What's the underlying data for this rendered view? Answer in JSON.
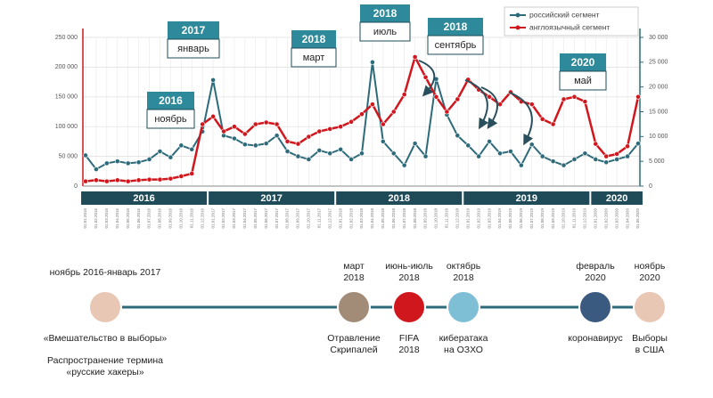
{
  "chart_data": {
    "type": "line",
    "categories": [
      "01.01.2016",
      "01.02.2016",
      "01.03.2016",
      "01.04.2016",
      "01.05.2016",
      "01.06.2016",
      "01.07.2016",
      "01.08.2016",
      "01.09.2016",
      "01.10.2016",
      "01.11.2016",
      "01.12.2016",
      "01.01.2017",
      "01.02.2017",
      "01.03.2017",
      "01.04.2017",
      "01.05.2017",
      "01.06.2017",
      "01.07.2017",
      "01.08.2017",
      "01.09.2017",
      "01.10.2017",
      "01.11.2017",
      "01.12.2017",
      "01.01.2018",
      "01.02.2018",
      "01.03.2018",
      "01.04.2018",
      "01.05.2018",
      "01.06.2018",
      "01.07.2018",
      "01.08.2018",
      "01.09.2018",
      "01.10.2018",
      "01.11.2018",
      "01.12.2018",
      "01.01.2019",
      "01.02.2019",
      "01.03.2019",
      "01.04.2019",
      "01.05.2019",
      "01.06.2019",
      "01.07.2019",
      "01.08.2019",
      "01.09.2019",
      "01.10.2019",
      "01.11.2019",
      "01.12.2019",
      "01.01.2020",
      "01.02.2020",
      "01.03.2020",
      "01.04.2020",
      "01.05.2020"
    ],
    "year_bands": [
      "2016",
      "2017",
      "2018",
      "2019",
      "2020"
    ],
    "series": [
      {
        "name": "российский сегмент",
        "color": "#2e6b7a",
        "axis": "y2",
        "values": [
          6200,
          3400,
          4600,
          5000,
          4600,
          4800,
          5400,
          7000,
          5800,
          8200,
          7400,
          11000,
          21400,
          10200,
          9600,
          8400,
          8200,
          8600,
          10200,
          7000,
          6000,
          5400,
          7200,
          6600,
          7400,
          5400,
          6600,
          25000,
          9000,
          6600,
          4200,
          8600,
          6000,
          21600,
          14400,
          10200,
          8200,
          6000,
          9000,
          6600,
          7000,
          4200,
          8400,
          6000,
          5000,
          4200,
          5400,
          6600,
          5400,
          4800,
          5400,
          6000,
          8600
        ]
      },
      {
        "name": "англоязычный сегмент",
        "color": "#d0171d",
        "values": [
          8000,
          10000,
          8000,
          10000,
          8000,
          10000,
          11000,
          11000,
          12500,
          16500,
          21000,
          104000,
          117000,
          92000,
          100000,
          87500,
          104000,
          107000,
          104000,
          75000,
          71000,
          83000,
          92000,
          96000,
          100000,
          108000,
          121000,
          137500,
          104000,
          125000,
          154000,
          217000,
          183000,
          150000,
          125000,
          146000,
          179000,
          162000,
          150000,
          137500,
          158000,
          142000,
          137500,
          112500,
          104000,
          146000,
          150000,
          142000,
          71000,
          50000,
          54000,
          67000,
          150000
        ]
      }
    ],
    "ylim": [
      0,
      250000
    ],
    "yticks": [
      0,
      {
        "value": 50000,
        "label": "50 000"
      },
      {
        "value": 100000,
        "label": "100 000"
      },
      {
        "value": 150000,
        "label": "150 000"
      },
      {
        "value": 200000,
        "label": "200 000"
      },
      {
        "value": 250000,
        "label": "250 000"
      }
    ],
    "y2lim": [
      0,
      30000
    ],
    "y2ticks": [
      0,
      {
        "value": 5000,
        "label": "5 000"
      },
      {
        "value": 10000,
        "label": "10 000"
      },
      {
        "value": 15000,
        "label": "15 000"
      },
      {
        "value": 20000,
        "label": "20 000"
      },
      {
        "value": 25000,
        "label": "25 000"
      },
      {
        "value": 30000,
        "label": "30 000"
      }
    ],
    "grid": true,
    "legend": "upper right",
    "annotations": [
      {
        "year": "2016",
        "month": "ноябрь"
      },
      {
        "year": "2017",
        "month": "январь"
      },
      {
        "year": "2018",
        "month": "март"
      },
      {
        "year": "2018",
        "month": "июль"
      },
      {
        "year": "2018",
        "month": "сентябрь"
      },
      {
        "year": "2020",
        "month": "май"
      }
    ]
  },
  "timeline": [
    {
      "date": "ноябрь 2016-январь 2017",
      "caption": [
        "«Вмешательство в выборы»"
      ],
      "note": [
        "Распространение термина",
        "«русские хакеры»"
      ]
    },
    {
      "date": [
        "март",
        "2018"
      ],
      "caption": [
        "Отравление",
        "Скрипалей"
      ]
    },
    {
      "date": [
        "июнь-июль",
        "2018"
      ],
      "caption": [
        "FIFA",
        "2018"
      ]
    },
    {
      "date": [
        "октябрь",
        "2018"
      ],
      "caption": [
        "кибератака",
        "на ОЗХО"
      ]
    },
    {
      "date": [
        "февраль",
        "2020"
      ],
      "caption": [
        "коронавирус"
      ]
    },
    {
      "date": [
        "ноябрь",
        "2020"
      ],
      "caption": [
        "Выборы",
        "в США"
      ]
    }
  ]
}
